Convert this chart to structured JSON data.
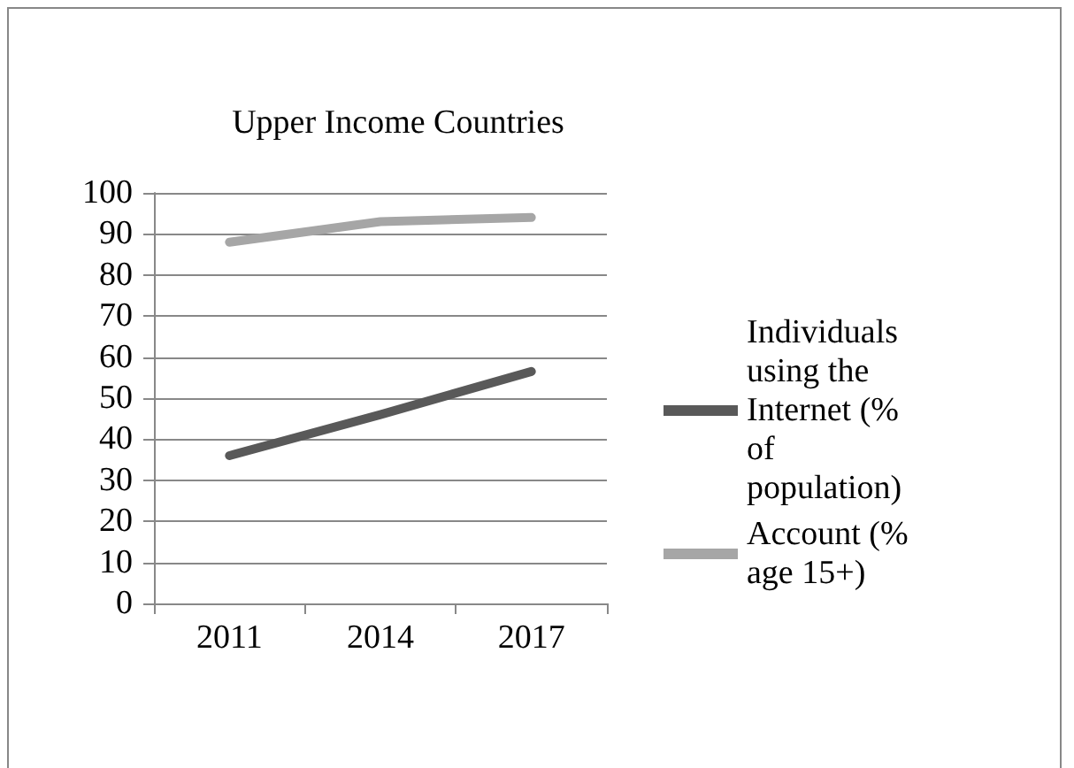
{
  "chart_data": {
    "type": "line",
    "title": "Upper Income Countries",
    "categories": [
      "2011",
      "2014",
      "2017"
    ],
    "series": [
      {
        "name": "Individuals using the Internet (% of population)",
        "color": "#595959",
        "values": [
          36,
          46,
          56.5
        ]
      },
      {
        "name": "Account (% age 15+)",
        "color": "#a6a6a6",
        "values": [
          88,
          93,
          94
        ]
      }
    ],
    "ylim": [
      0,
      100
    ],
    "yticks": [
      0,
      10,
      20,
      30,
      40,
      50,
      60,
      70,
      80,
      90,
      100
    ],
    "grid": "y",
    "legend": "right",
    "marker": "none",
    "line_style": "solid"
  }
}
